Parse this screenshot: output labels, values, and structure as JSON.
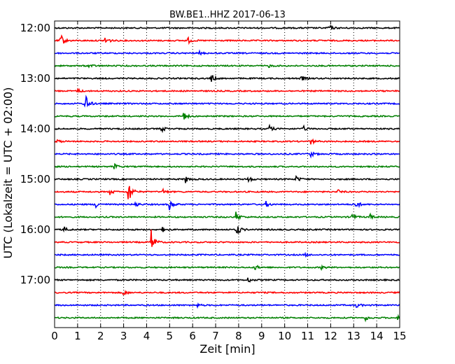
{
  "chart_data": {
    "type": "line",
    "title": "BW.BE1..HHZ 2017-06-13",
    "xlabel": "Zeit  [min]",
    "ylabel": "UTC (Lokalzeit = UTC + 02:00)",
    "xlim": [
      0,
      15
    ],
    "x_ticks": [
      "0",
      "1",
      "2",
      "3",
      "4",
      "5",
      "6",
      "7",
      "8",
      "9",
      "10",
      "11",
      "12",
      "13",
      "14",
      "15"
    ],
    "y_ticks": [
      "12:00",
      "13:00",
      "14:00",
      "15:00",
      "16:00",
      "17:00"
    ],
    "grid": "vertical dotted",
    "line_colors": [
      "#000000",
      "#ff0000",
      "#0000ff",
      "#008000"
    ],
    "traces": [
      {
        "start": "12:00",
        "events": [
          {
            "x": 11.9,
            "amp": 6
          }
        ]
      },
      {
        "start": "12:15",
        "events": [
          {
            "x": 0.25,
            "amp": 11
          },
          {
            "x": 2.2,
            "amp": 8
          },
          {
            "x": 5.8,
            "amp": 4
          }
        ]
      },
      {
        "start": "12:30",
        "events": [
          {
            "x": 6.3,
            "amp": 2
          }
        ]
      },
      {
        "start": "12:45",
        "events": [
          {
            "x": 1.5,
            "amp": 3
          },
          {
            "x": 9.3,
            "amp": 2
          }
        ]
      },
      {
        "start": "13:00",
        "events": [
          {
            "x": 6.8,
            "amp": 6
          },
          {
            "x": 10.7,
            "amp": 5
          }
        ]
      },
      {
        "start": "13:15",
        "events": [
          {
            "x": 1.0,
            "amp": 3
          }
        ]
      },
      {
        "start": "13:30",
        "events": [
          {
            "x": 1.3,
            "amp": 20
          }
        ]
      },
      {
        "start": "13:45",
        "events": [
          {
            "x": 5.6,
            "amp": 7
          }
        ]
      },
      {
        "start": "14:00",
        "events": [
          {
            "x": 4.6,
            "amp": 6
          },
          {
            "x": 9.3,
            "amp": 6
          },
          {
            "x": 10.8,
            "amp": 4
          }
        ]
      },
      {
        "start": "14:15",
        "events": [
          {
            "x": 0.1,
            "amp": 3
          },
          {
            "x": 11.1,
            "amp": 6
          }
        ]
      },
      {
        "start": "14:30",
        "events": [
          {
            "x": 11.1,
            "amp": 5
          }
        ]
      },
      {
        "start": "14:45",
        "events": [
          {
            "x": 2.6,
            "amp": 4
          }
        ]
      },
      {
        "start": "15:00",
        "events": [
          {
            "x": 5.7,
            "amp": 5
          },
          {
            "x": 8.4,
            "amp": 5
          },
          {
            "x": 10.5,
            "amp": 5
          }
        ]
      },
      {
        "start": "15:15",
        "events": [
          {
            "x": 3.2,
            "amp": 20
          },
          {
            "x": 2.4,
            "amp": 4
          },
          {
            "x": 4.7,
            "amp": 4
          },
          {
            "x": 12.3,
            "amp": 3
          }
        ]
      },
      {
        "start": "15:30",
        "events": [
          {
            "x": 1.8,
            "amp": 5
          },
          {
            "x": 3.5,
            "amp": 4
          },
          {
            "x": 5.0,
            "amp": 9
          },
          {
            "x": 9.2,
            "amp": 4
          },
          {
            "x": 13.1,
            "amp": 6
          }
        ]
      },
      {
        "start": "15:45",
        "events": [
          {
            "x": 7.9,
            "amp": 7
          },
          {
            "x": 12.9,
            "amp": 6
          },
          {
            "x": 13.7,
            "amp": 4
          }
        ]
      },
      {
        "start": "16:00",
        "events": [
          {
            "x": 0.4,
            "amp": 4
          },
          {
            "x": 7.9,
            "amp": 11
          },
          {
            "x": 4.7,
            "amp": 3
          }
        ]
      },
      {
        "start": "16:15",
        "events": [
          {
            "x": 4.2,
            "amp": 18
          }
        ]
      },
      {
        "start": "16:30",
        "events": [
          {
            "x": 10.9,
            "amp": 2
          }
        ]
      },
      {
        "start": "16:45",
        "events": [
          {
            "x": 8.7,
            "amp": 4
          },
          {
            "x": 11.6,
            "amp": 3
          }
        ]
      },
      {
        "start": "17:00",
        "events": [
          {
            "x": 8.4,
            "amp": 4
          }
        ]
      },
      {
        "start": "17:15",
        "events": [
          {
            "x": 3.0,
            "amp": 4
          }
        ]
      },
      {
        "start": "17:30",
        "events": [
          {
            "x": 6.2,
            "amp": 2
          },
          {
            "x": 13.1,
            "amp": 4
          }
        ]
      },
      {
        "start": "17:45",
        "events": [
          {
            "x": 13.5,
            "amp": 4
          },
          {
            "x": 14.9,
            "amp": 3
          }
        ]
      }
    ]
  }
}
